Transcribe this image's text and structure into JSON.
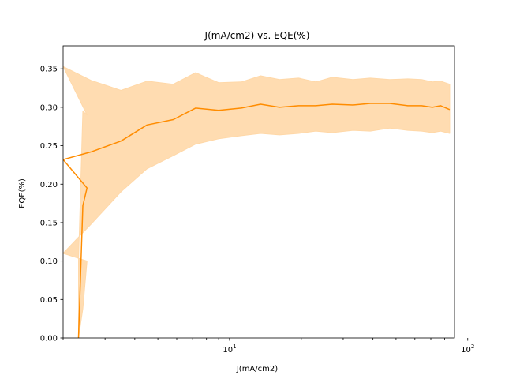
{
  "chart_data": {
    "type": "line",
    "title": "J(mA/cm2) vs. EQE(%)",
    "xlabel": "J(mA/cm2)",
    "ylabel": "EQE(%)",
    "xscale": "log",
    "xlim": [
      2.0,
      88
    ],
    "ylim": [
      0.0,
      0.38
    ],
    "grid": false,
    "color": "#ff8c00",
    "band_color": "#ffd8a8",
    "x_ticks": [
      {
        "value": 10,
        "base": "10",
        "exp": "1"
      },
      {
        "value": 100,
        "base": "10",
        "exp": "2"
      }
    ],
    "y_ticks": [
      "0.00",
      "0.05",
      "0.10",
      "0.15",
      "0.20",
      "0.25",
      "0.30",
      "0.35"
    ],
    "series": [
      {
        "x": [
          2.32,
          2.42,
          2.52,
          2.0,
          2.62,
          3.5,
          4.5,
          5.8,
          7.2,
          9.0,
          11.2,
          13.5,
          16.2,
          19.5,
          23.0,
          27.0,
          33.0,
          39.0,
          47.0,
          56.0,
          64.0,
          71.0,
          77.0,
          84.0
        ],
        "y": [
          0.0,
          0.172,
          0.195,
          0.232,
          0.242,
          0.256,
          0.277,
          0.284,
          0.299,
          0.296,
          0.299,
          0.304,
          0.3,
          0.302,
          0.302,
          0.304,
          0.303,
          0.305,
          0.305,
          0.302,
          0.302,
          0.3,
          0.302,
          0.297
        ],
        "lower": [
          0.0,
          0.038,
          0.1,
          0.11,
          0.148,
          0.19,
          0.22,
          0.237,
          0.252,
          0.259,
          0.263,
          0.266,
          0.264,
          0.266,
          0.269,
          0.267,
          0.27,
          0.269,
          0.273,
          0.27,
          0.269,
          0.267,
          0.269,
          0.266
        ],
        "upper": [
          0.1,
          0.295,
          0.29,
          0.353,
          0.335,
          0.322,
          0.334,
          0.33,
          0.345,
          0.332,
          0.333,
          0.341,
          0.336,
          0.338,
          0.333,
          0.339,
          0.336,
          0.338,
          0.336,
          0.337,
          0.336,
          0.333,
          0.334,
          0.33
        ]
      }
    ]
  }
}
